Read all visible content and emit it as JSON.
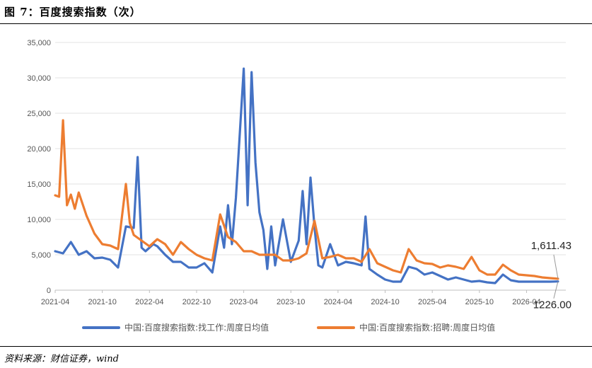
{
  "header": {
    "title": "图 7：百度搜索指数（次）"
  },
  "footer": {
    "source": "资料来源：财信证券，wind"
  },
  "chart_data": {
    "type": "line",
    "title": "",
    "xlabel": "",
    "ylabel": "",
    "ylim": [
      0,
      35000
    ],
    "yticks": [
      0,
      5000,
      10000,
      15000,
      20000,
      25000,
      30000,
      35000
    ],
    "ytick_labels": [
      "0",
      "5,000",
      "10,000",
      "15,000",
      "20,000",
      "25,000",
      "30,000",
      "35,000"
    ],
    "xticks": [
      "2021-04",
      "2021-10",
      "2022-04",
      "2022-10",
      "2023-04",
      "2023-10",
      "2024-04",
      "2024-10",
      "2025-04",
      "2025-10",
      "2026-04"
    ],
    "xlim": [
      "2021-04",
      "2026-09"
    ],
    "grid": "horizontal",
    "legend_position": "bottom",
    "colors": {
      "job": "#4472C4",
      "recruit": "#ED7D31"
    },
    "series": [
      {
        "name": "中国:百度搜索指数:找工作:周度日均值",
        "color": "#4472C4",
        "x": [
          "2021-04",
          "2021-05",
          "2021-06",
          "2021-07",
          "2021-08",
          "2021-09",
          "2021-10",
          "2021-11",
          "2021-12",
          "2022-01",
          "2022-02",
          "2022-02",
          "2022-03",
          "2022-03",
          "2022-04",
          "2022-04",
          "2022-05",
          "2022-06",
          "2022-07",
          "2022-08",
          "2022-09",
          "2022-10",
          "2022-11",
          "2022-12",
          "2023-01",
          "2023-01",
          "2023-02",
          "2023-02",
          "2023-03",
          "2023-04",
          "2023-04",
          "2023-05",
          "2023-05",
          "2023-06",
          "2023-06",
          "2023-07",
          "2023-07",
          "2023-08",
          "2023-09",
          "2023-10",
          "2023-11",
          "2023-11",
          "2023-12",
          "2023-12",
          "2024-01",
          "2024-01",
          "2024-02",
          "2024-03",
          "2024-04",
          "2024-05",
          "2024-06",
          "2024-07",
          "2024-07",
          "2024-08",
          "2024-09",
          "2024-10",
          "2024-11",
          "2024-12",
          "2025-01",
          "2025-02",
          "2025-03",
          "2025-04",
          "2025-05",
          "2025-06",
          "2025-07",
          "2025-08",
          "2025-09",
          "2025-10",
          "2025-11",
          "2025-12",
          "2026-01",
          "2026-02",
          "2026-03",
          "2026-04",
          "2026-05",
          "2026-06",
          "2026-07",
          "2026-08"
        ],
        "values": [
          5500,
          5200,
          6800,
          5000,
          5500,
          4500,
          4600,
          4300,
          3200,
          9000,
          8800,
          18800,
          6000,
          5500,
          6000,
          6500,
          6200,
          5000,
          4000,
          4000,
          3200,
          3200,
          3800,
          2500,
          9000,
          6000,
          12000,
          6500,
          13000,
          31300,
          12000,
          30800,
          18000,
          11000,
          8500,
          3000,
          9000,
          3500,
          10000,
          4000,
          7000,
          14000,
          6500,
          15900,
          9000,
          3500,
          3200,
          6500,
          3500,
          4000,
          3800,
          3500,
          10400,
          3000,
          2200,
          1500,
          1200,
          1200,
          3300,
          3000,
          2200,
          2500,
          2000,
          1500,
          1800,
          1500,
          1200,
          1300,
          1100,
          1000,
          2200,
          1400,
          1200,
          1200,
          1200,
          1200,
          1200,
          1226
        ]
      },
      {
        "name": "中国:百度搜索指数:招聘:周度日均值",
        "color": "#ED7D31",
        "x": [
          "2021-04",
          "2021-04",
          "2021-05",
          "2021-05",
          "2021-06",
          "2021-06",
          "2021-07",
          "2021-08",
          "2021-09",
          "2021-10",
          "2021-11",
          "2021-12",
          "2022-01",
          "2022-01",
          "2022-02",
          "2022-03",
          "2022-04",
          "2022-05",
          "2022-06",
          "2022-07",
          "2022-08",
          "2022-09",
          "2022-10",
          "2022-11",
          "2022-12",
          "2023-01",
          "2023-02",
          "2023-03",
          "2023-04",
          "2023-05",
          "2023-06",
          "2023-07",
          "2023-08",
          "2023-09",
          "2023-10",
          "2023-11",
          "2023-12",
          "2024-01",
          "2024-02",
          "2024-03",
          "2024-04",
          "2024-05",
          "2024-06",
          "2024-07",
          "2024-08",
          "2024-09",
          "2024-10",
          "2024-11",
          "2024-12",
          "2025-01",
          "2025-02",
          "2025-03",
          "2025-04",
          "2025-05",
          "2025-06",
          "2025-07",
          "2025-08",
          "2025-09",
          "2025-10",
          "2025-11",
          "2025-12",
          "2026-01",
          "2026-02",
          "2026-03",
          "2026-04",
          "2026-05",
          "2026-06",
          "2026-07",
          "2026-08"
        ],
        "values": [
          13400,
          13200,
          24000,
          12000,
          13500,
          11500,
          13800,
          10500,
          8000,
          6500,
          6300,
          5800,
          15000,
          9500,
          7800,
          7000,
          6200,
          7200,
          6500,
          5000,
          6800,
          5800,
          5000,
          4500,
          4200,
          10700,
          7500,
          6800,
          5500,
          5500,
          5000,
          5000,
          5000,
          4200,
          4200,
          4500,
          5200,
          9800,
          4500,
          4700,
          5000,
          4500,
          4500,
          4000,
          5800,
          3800,
          3300,
          2800,
          2500,
          5800,
          4200,
          3800,
          3700,
          3200,
          3500,
          3300,
          3000,
          4700,
          2800,
          2200,
          2200,
          3600,
          2800,
          2200,
          2100,
          2000,
          1800,
          1700,
          1611.43
        ]
      }
    ],
    "annotations": [
      {
        "series": "中国:百度搜索指数:招聘:周度日均值",
        "text": "1,611.43"
      },
      {
        "series": "中国:百度搜索指数:找工作:周度日均值",
        "text": "1226.00"
      }
    ]
  }
}
